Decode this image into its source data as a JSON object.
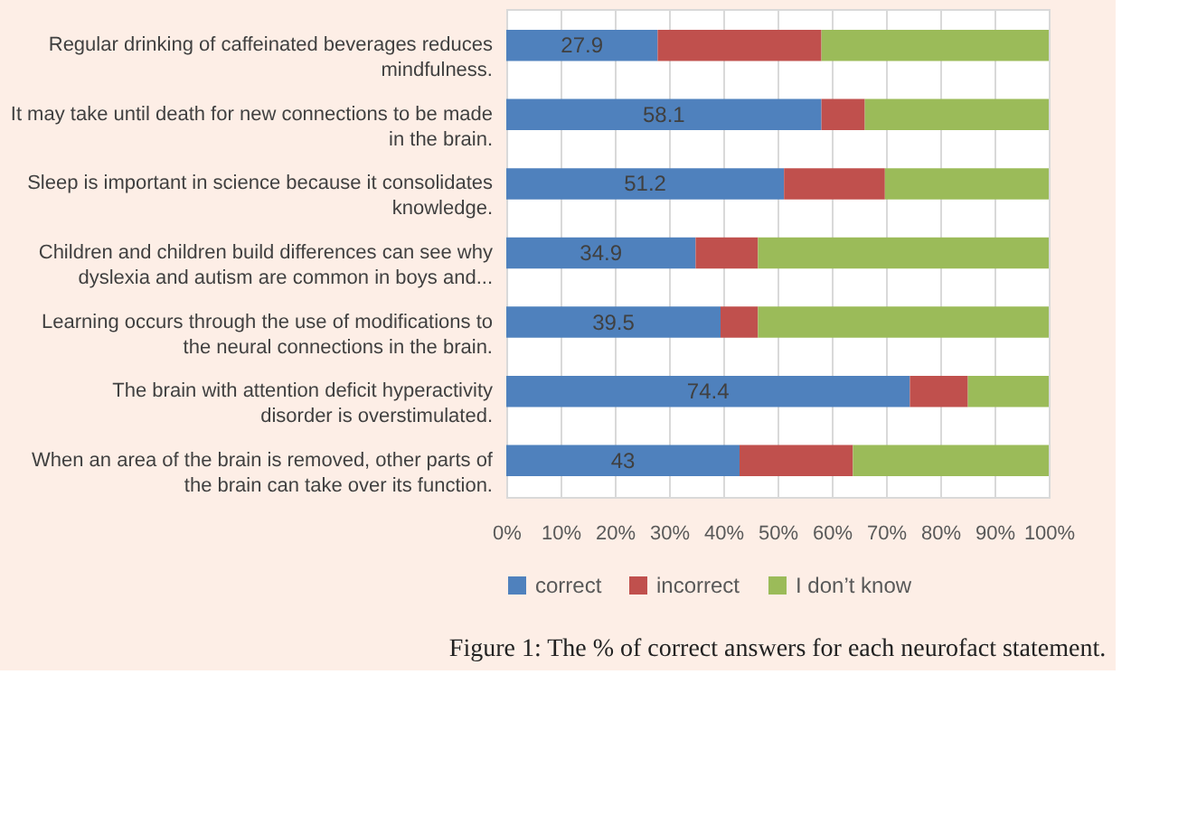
{
  "chart_data": {
    "type": "bar",
    "orientation": "horizontal",
    "stacked": true,
    "title": "Figure 1: The % of correct answers for each neurofact statement.",
    "categories": [
      "Regular drinking of caffeinated beverages reduces mindfulness.",
      "It may take until death for new connections to be made in the brain.",
      "Sleep is important in science because it consolidates knowledge.",
      "Children and children build differences can see why dyslexia and autism are common in boys and...",
      "Learning occurs through the use of modifications to the neural connections in the brain.",
      "The brain with attention deficit hyperactivity disorder is overstimulated.",
      "When an area of the brain is removed, other parts of the brain can take over its function."
    ],
    "series": [
      {
        "name": "correct",
        "color": "#4f81bd",
        "values": [
          27.9,
          58.1,
          51.2,
          34.9,
          39.5,
          74.4,
          43
        ],
        "value_labels": [
          "27.9",
          "58.1",
          "51.2",
          "34.9",
          "39.5",
          "74.4",
          "43"
        ]
      },
      {
        "name": "incorrect",
        "color": "#c0504d",
        "values": [
          30.2,
          8.0,
          18.6,
          11.5,
          6.9,
          10.7,
          20.9
        ]
      },
      {
        "name": "I don’t know",
        "color": "#9bbb59",
        "values": [
          41.9,
          33.9,
          30.2,
          53.6,
          53.6,
          14.9,
          36.1
        ]
      }
    ],
    "xlim": [
      0,
      100
    ],
    "xticks": [
      {
        "value": 0,
        "label": "0%"
      },
      {
        "value": 10,
        "label": "10%"
      },
      {
        "value": 20,
        "label": "20%"
      },
      {
        "value": 30,
        "label": "30%"
      },
      {
        "value": 40,
        "label": "40%"
      },
      {
        "value": 50,
        "label": "50%"
      },
      {
        "value": 60,
        "label": "60%"
      },
      {
        "value": 70,
        "label": "70%"
      },
      {
        "value": 80,
        "label": "80%"
      },
      {
        "value": 90,
        "label": "90%"
      },
      {
        "value": 100,
        "label": "100%"
      }
    ],
    "grid": "x",
    "legend": "bottom"
  }
}
